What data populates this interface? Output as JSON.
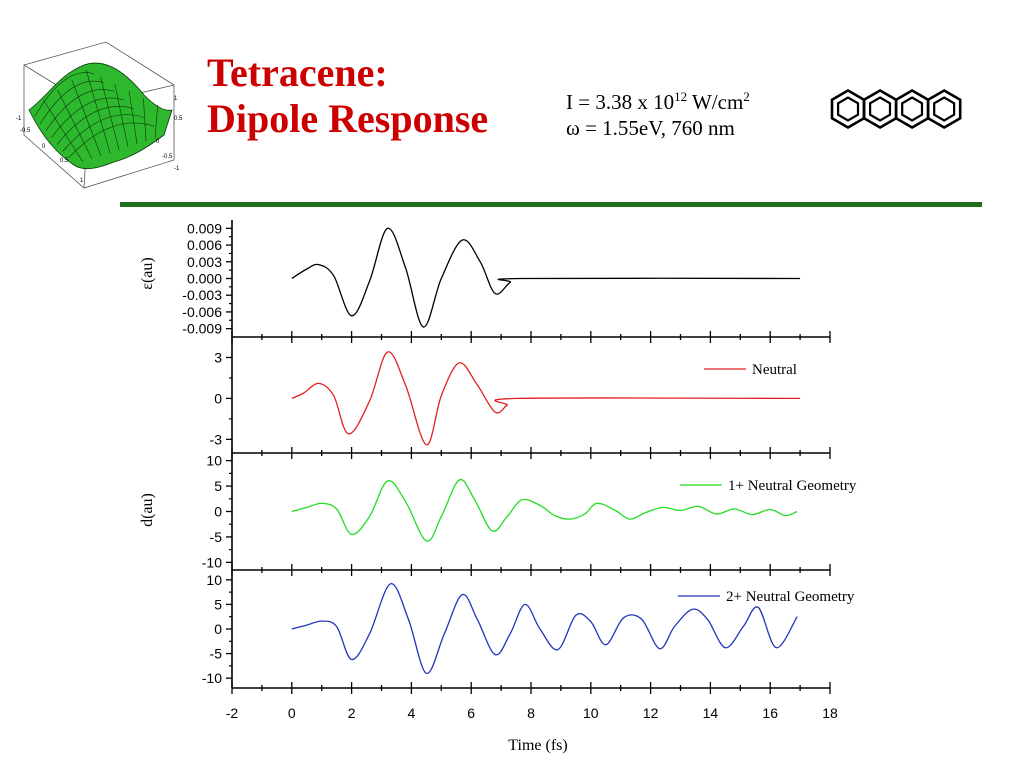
{
  "slide": {
    "title_line1": "Tetracene:",
    "title_line2": "Dipole Response",
    "intensity_prefix": "I = 3.38 x 10",
    "intensity_exponent": "12",
    "intensity_unit": " W/cm",
    "intensity_unit_exponent": "2",
    "frequency": "ω = 1.55eV, 760 nm",
    "colors": {
      "title": "#cc0000",
      "rule": "#1e6e1e",
      "surface": "#2db82d"
    },
    "surface_icon": "3d-surface-plot-thumbnail",
    "molecule_icon": "tetracene-structure",
    "surface_axis_labels": [
      "-1",
      "-0.5",
      "0",
      "0.5",
      "1"
    ]
  },
  "chart_data": {
    "type": "line",
    "x": {
      "label": "Time (fs)",
      "range": [
        -2,
        18
      ],
      "ticks": [
        "-2",
        "0",
        "2",
        "4",
        "6",
        "8",
        "10",
        "12",
        "14",
        "16",
        "18"
      ]
    },
    "shared_ylabel": "d(au)",
    "panels": [
      {
        "ylabel": "ε(au)",
        "ylim": [
          -0.0105,
          0.0105
        ],
        "yticks": [
          0.009,
          0.006,
          0.003,
          0.0,
          -0.003,
          -0.006,
          -0.009
        ],
        "ytick_labels": [
          "0.009",
          "0.006",
          "0.003",
          "0.000",
          "-0.003",
          "-0.006",
          "-0.009"
        ],
        "series": {
          "color": "#000000",
          "x": [
            0,
            0.5,
            0.9,
            1.4,
            2.0,
            2.6,
            3.2,
            3.8,
            4.4,
            5.0,
            5.7,
            6.3,
            6.8,
            7.3,
            7.7,
            17
          ],
          "y": [
            0,
            0.0017,
            0.0025,
            0.0005,
            -0.0067,
            -0.0005,
            0.009,
            0.002,
            -0.0087,
            0.0,
            0.0069,
            0.003,
            -0.0027,
            -0.0007,
            0,
            0
          ]
        }
      },
      {
        "ylabel": "",
        "ylim": [
          -4,
          4.5
        ],
        "yticks": [
          3,
          0,
          -3
        ],
        "ytick_labels": [
          "3",
          "0",
          "-3"
        ],
        "series": {
          "name": "Neutral",
          "color": "#e02020",
          "x": [
            0,
            0.4,
            0.9,
            1.4,
            1.9,
            2.6,
            3.2,
            3.8,
            4.5,
            5.0,
            5.6,
            6.2,
            6.8,
            7.2,
            7.6,
            17
          ],
          "y": [
            0,
            0.4,
            1.1,
            0.2,
            -2.6,
            -0.2,
            3.4,
            1.0,
            -3.4,
            0.2,
            2.6,
            1.0,
            -1.0,
            -0.5,
            0,
            0
          ]
        }
      },
      {
        "ylabel": "",
        "ylim": [
          -11.5,
          11.5
        ],
        "yticks": [
          10,
          5,
          0,
          -5,
          -10
        ],
        "ytick_labels": [
          "10",
          "5",
          "0",
          "-5",
          "-10"
        ],
        "series": {
          "name": "1+ Neutral Geometry",
          "color": "#22dd22",
          "x": [
            0,
            0.5,
            1.0,
            1.5,
            2.0,
            2.6,
            3.2,
            3.8,
            4.5,
            5.0,
            5.6,
            6.1,
            6.7,
            7.2,
            7.7,
            8.3,
            8.8,
            9.3,
            9.8,
            10.2,
            10.8,
            11.3,
            11.8,
            12.4,
            13.0,
            13.6,
            14.2,
            14.8,
            15.4,
            16.0,
            16.5,
            16.9
          ],
          "y": [
            0,
            0.8,
            1.6,
            0.5,
            -4.5,
            -1.0,
            6.0,
            2.0,
            -5.8,
            -1.0,
            6.2,
            2.5,
            -3.8,
            -1.0,
            2.3,
            1.2,
            -0.8,
            -1.5,
            -0.5,
            1.6,
            0.3,
            -1.5,
            -0.3,
            0.8,
            0.2,
            1.0,
            -0.5,
            0.5,
            -0.6,
            0.4,
            -0.8,
            0
          ]
        }
      },
      {
        "ylabel": "",
        "ylim": [
          -12,
          12
        ],
        "yticks": [
          10,
          5,
          0,
          -5,
          -10
        ],
        "ytick_labels": [
          "10",
          "5",
          "0",
          "-5",
          "-10"
        ],
        "series": {
          "name": "2+ Neutral Geometry",
          "color": "#2233bb",
          "x": [
            0,
            0.5,
            1.0,
            1.5,
            2.0,
            2.6,
            3.3,
            3.9,
            4.5,
            5.1,
            5.7,
            6.2,
            6.8,
            7.3,
            7.8,
            8.3,
            8.9,
            9.5,
            10.0,
            10.5,
            11.1,
            11.7,
            12.3,
            12.8,
            13.4,
            13.9,
            14.5,
            15.1,
            15.6,
            16.2,
            16.9
          ],
          "y": [
            0,
            0.8,
            1.6,
            0.5,
            -6.2,
            -1.0,
            9.2,
            2.0,
            -9.0,
            -1.0,
            7.0,
            2.0,
            -5.2,
            -1.0,
            5.0,
            0.0,
            -4.2,
            2.8,
            1.5,
            -3.2,
            2.3,
            2.0,
            -4.0,
            0.5,
            4.0,
            2.0,
            -3.8,
            0.5,
            4.4,
            -3.8,
            2.5
          ]
        }
      }
    ]
  }
}
